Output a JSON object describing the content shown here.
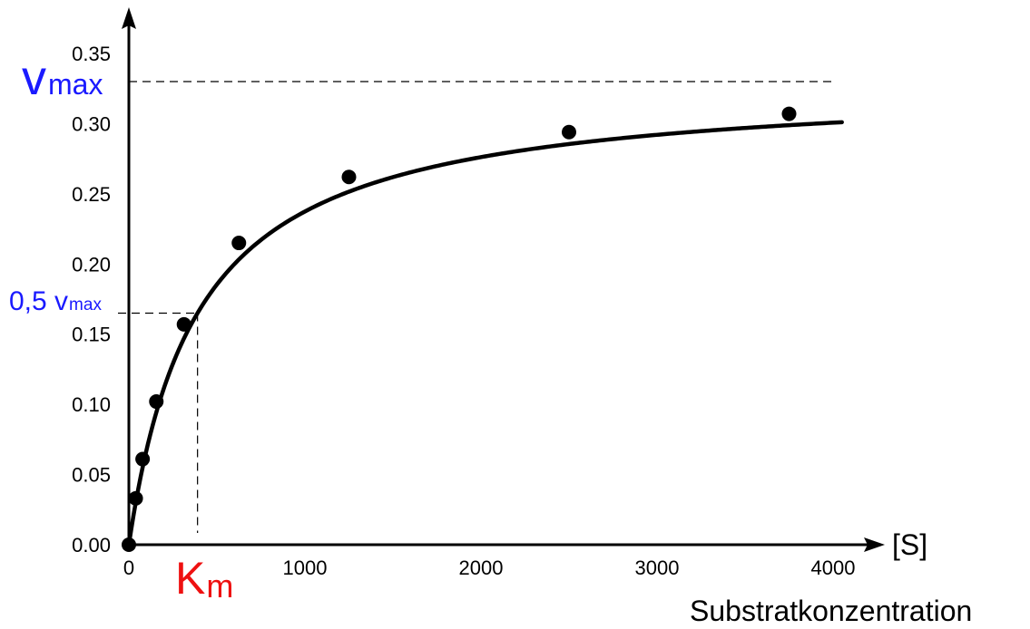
{
  "chart_data": {
    "type": "scatter",
    "title": "",
    "xlabel": "Substratkonzentration",
    "x_unit_label": "[S]",
    "ylabel": "",
    "xlim": [
      0,
      4000
    ],
    "ylim": [
      0,
      0.35
    ],
    "x_ticks": [
      {
        "value": 0,
        "label": "0"
      },
      {
        "value": 1000,
        "label": "1000"
      },
      {
        "value": 2000,
        "label": "2000"
      },
      {
        "value": 3000,
        "label": "3000"
      },
      {
        "value": 4000,
        "label": "4000"
      }
    ],
    "y_ticks": [
      {
        "value": 0,
        "label": "0.00"
      },
      {
        "value": 0.05,
        "label": "0.05"
      },
      {
        "value": 0.1,
        "label": "0.10"
      },
      {
        "value": 0.15,
        "label": "0.15"
      },
      {
        "value": 0.2,
        "label": "0.20"
      },
      {
        "value": 0.25,
        "label": "0.25"
      },
      {
        "value": 0.3,
        "label": "0.30"
      },
      {
        "value": 0.35,
        "label": "0.35"
      }
    ],
    "grid": false,
    "series": [
      {
        "points": [
          {
            "x": 0,
            "y": 0.0
          },
          {
            "x": 39,
            "y": 0.033
          },
          {
            "x": 78,
            "y": 0.061
          },
          {
            "x": 156,
            "y": 0.102
          },
          {
            "x": 313,
            "y": 0.157
          },
          {
            "x": 625,
            "y": 0.215
          },
          {
            "x": 1250,
            "y": 0.262
          },
          {
            "x": 2500,
            "y": 0.294
          },
          {
            "x": 3750,
            "y": 0.307
          }
        ]
      }
    ],
    "fit_curve": {
      "model": "michaelis-menten",
      "vmax": 0.33,
      "km": 390,
      "x_range": [
        0,
        4050
      ]
    },
    "annotations": {
      "vmax": {
        "value": 0.33,
        "label_main": "v",
        "label_sub": "max",
        "color": "#1a1aff"
      },
      "half_vmax": {
        "value": 0.165,
        "label_main": "0,5 v",
        "label_sub": "max",
        "color": "#1a1aff"
      },
      "km": {
        "value": 390,
        "label_main": "K",
        "label_sub": "m",
        "color": "#ee1111"
      }
    }
  }
}
